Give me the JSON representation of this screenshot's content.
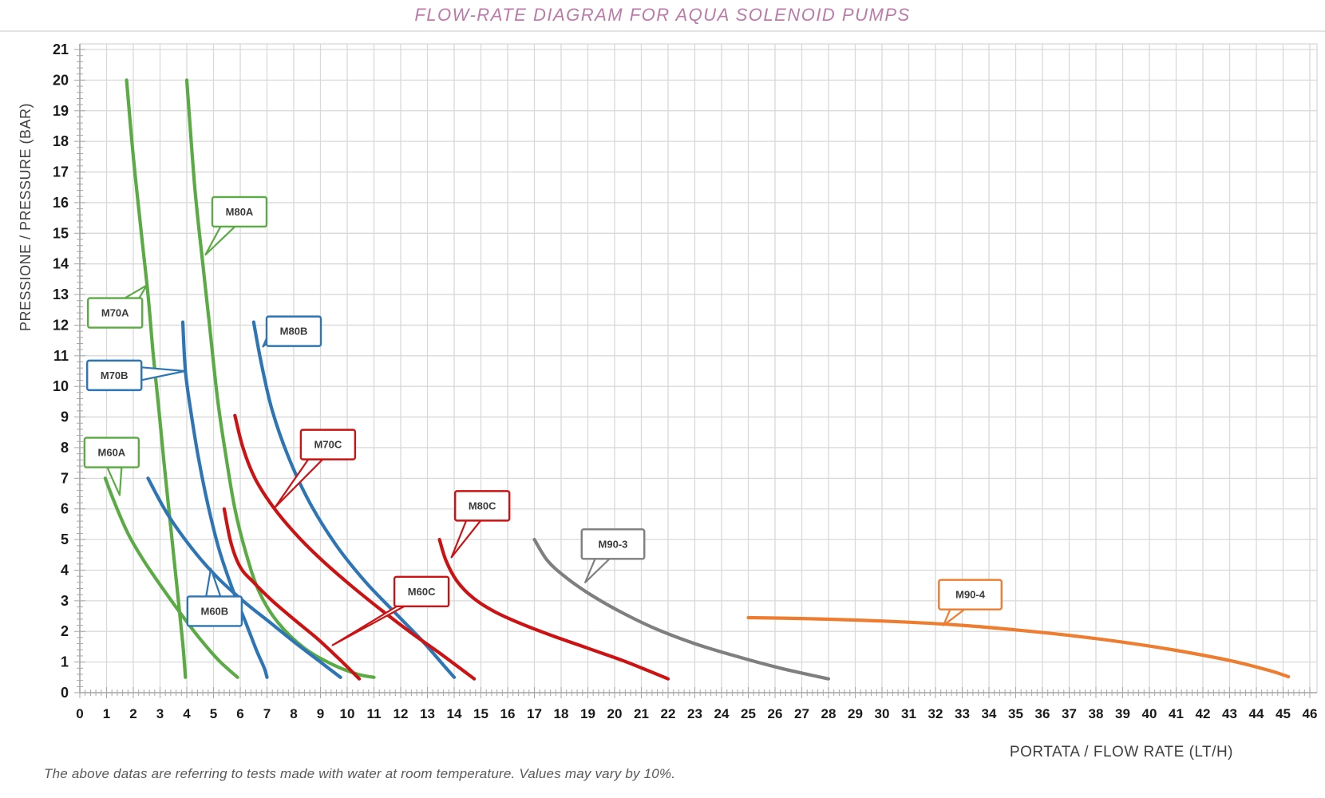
{
  "title": "FLOW-RATE DIAGRAM FOR AQUA SOLENOID PUMPS",
  "footnote": "The above datas are referring to tests made with water at room temperature. Values may vary by 10%.",
  "colors": {
    "title": "#bc7aa8",
    "grid": "#d9d9d9",
    "axis": "#a6a6a6",
    "tick_label": "#1a1a1a",
    "axis_label": "#404040",
    "footnote": "#595959",
    "green": "#5bab45",
    "blue": "#2e75b6",
    "red": "#cc1212",
    "gray": "#7f7f7f",
    "orange": "#ed7d31"
  },
  "chart_data": {
    "type": "line",
    "title": "FLOW-RATE DIAGRAM FOR AQUA SOLENOID PUMPS",
    "xlabel": "PORTATA / FLOW RATE (LT/H)",
    "ylabel": "PRESSIONE / PRESSURE (BAR)",
    "xlim": [
      0,
      46
    ],
    "ylim": [
      0,
      21
    ],
    "x_tick_step": 1,
    "y_tick_step": 1,
    "grid": true,
    "legend_position": "callout-labels-on-curves",
    "series": [
      {
        "name": "M60A",
        "color": "#5bab45",
        "points": [
          [
            0.95,
            7.0
          ],
          [
            1.3,
            6.2
          ],
          [
            1.8,
            5.2
          ],
          [
            2.4,
            4.3
          ],
          [
            3.1,
            3.4
          ],
          [
            3.8,
            2.55
          ],
          [
            4.5,
            1.75
          ],
          [
            5.2,
            1.05
          ],
          [
            5.9,
            0.5
          ]
        ],
        "label_box": [
          1.19,
          7.84
        ],
        "label_anchor": [
          1.49,
          6.45
        ]
      },
      {
        "name": "M70A",
        "color": "#5bab45",
        "points": [
          [
            1.75,
            20
          ],
          [
            2.0,
            17.5
          ],
          [
            2.3,
            15
          ],
          [
            2.55,
            13
          ],
          [
            2.75,
            11
          ],
          [
            2.95,
            9.3
          ],
          [
            3.15,
            7.5
          ],
          [
            3.4,
            5.4
          ],
          [
            3.65,
            3.3
          ],
          [
            3.85,
            1.6
          ],
          [
            3.95,
            0.5
          ]
        ],
        "label_box": [
          1.32,
          12.4
        ],
        "label_anchor": [
          2.5,
          13.3
        ]
      },
      {
        "name": "M80A",
        "color": "#5bab45",
        "points": [
          [
            4.0,
            20
          ],
          [
            4.3,
            16.5
          ],
          [
            4.6,
            14
          ],
          [
            4.85,
            12
          ],
          [
            5.15,
            9.6
          ],
          [
            5.45,
            7.8
          ],
          [
            5.8,
            6.0
          ],
          [
            6.2,
            4.6
          ],
          [
            6.7,
            3.3
          ],
          [
            7.4,
            2.3
          ],
          [
            8.4,
            1.45
          ],
          [
            9.5,
            0.9
          ],
          [
            10.4,
            0.6
          ],
          [
            11.0,
            0.5
          ]
        ],
        "label_box": [
          5.97,
          15.7
        ],
        "label_anchor": [
          4.7,
          14.3
        ]
      },
      {
        "name": "M60B",
        "color": "#2e75b6",
        "points": [
          [
            2.55,
            7.0
          ],
          [
            3.3,
            5.8
          ],
          [
            4.2,
            4.7
          ],
          [
            5.1,
            3.8
          ],
          [
            6.1,
            3.0
          ],
          [
            7.1,
            2.3
          ],
          [
            8.1,
            1.6
          ],
          [
            9.0,
            1.0
          ],
          [
            9.75,
            0.5
          ]
        ],
        "label_box": [
          5.04,
          2.66
        ],
        "label_anchor": [
          4.9,
          4.05
        ]
      },
      {
        "name": "M70B",
        "color": "#2e75b6",
        "points": [
          [
            3.85,
            12.1
          ],
          [
            3.95,
            10.5
          ],
          [
            4.15,
            9.2
          ],
          [
            4.45,
            7.6
          ],
          [
            4.8,
            6.1
          ],
          [
            5.2,
            4.7
          ],
          [
            5.7,
            3.4
          ],
          [
            6.2,
            2.3
          ],
          [
            6.6,
            1.4
          ],
          [
            6.9,
            0.8
          ],
          [
            7.0,
            0.5
          ]
        ],
        "label_box": [
          1.29,
          10.36
        ],
        "label_anchor": [
          3.94,
          10.5
        ]
      },
      {
        "name": "M80B",
        "color": "#2e75b6",
        "points": [
          [
            6.5,
            12.1
          ],
          [
            6.8,
            10.7
          ],
          [
            7.2,
            9.2
          ],
          [
            7.8,
            7.7
          ],
          [
            8.6,
            6.2
          ],
          [
            9.6,
            4.8
          ],
          [
            10.7,
            3.6
          ],
          [
            11.8,
            2.6
          ],
          [
            12.8,
            1.7
          ],
          [
            13.6,
            0.9
          ],
          [
            14.0,
            0.5
          ]
        ],
        "label_box": [
          8.0,
          11.8
        ],
        "label_anchor": [
          6.85,
          11.3
        ]
      },
      {
        "name": "M60C",
        "color": "#cc1212",
        "points": [
          [
            5.4,
            6.0
          ],
          [
            5.65,
            4.9
          ],
          [
            6.0,
            4.1
          ],
          [
            6.5,
            3.6
          ],
          [
            7.2,
            3.0
          ],
          [
            8.0,
            2.4
          ],
          [
            8.9,
            1.75
          ],
          [
            9.7,
            1.1
          ],
          [
            10.45,
            0.45
          ]
        ],
        "label_box": [
          12.78,
          3.3
        ],
        "label_anchor": [
          9.45,
          1.55
        ]
      },
      {
        "name": "M70C",
        "color": "#cc1212",
        "points": [
          [
            5.8,
            9.05
          ],
          [
            6.1,
            8.0
          ],
          [
            6.55,
            7.0
          ],
          [
            7.2,
            6.1
          ],
          [
            8.0,
            5.25
          ],
          [
            8.9,
            4.45
          ],
          [
            10.0,
            3.6
          ],
          [
            11.2,
            2.75
          ],
          [
            12.4,
            1.95
          ],
          [
            13.6,
            1.2
          ],
          [
            14.75,
            0.45
          ]
        ],
        "label_box": [
          9.28,
          8.1
        ],
        "label_anchor": [
          7.3,
          6.05
        ]
      },
      {
        "name": "M80C",
        "color": "#cc1212",
        "points": [
          [
            13.45,
            5.0
          ],
          [
            13.7,
            4.3
          ],
          [
            14.1,
            3.65
          ],
          [
            14.7,
            3.1
          ],
          [
            15.5,
            2.65
          ],
          [
            16.5,
            2.25
          ],
          [
            17.7,
            1.85
          ],
          [
            19.0,
            1.45
          ],
          [
            20.3,
            1.05
          ],
          [
            21.3,
            0.7
          ],
          [
            22.0,
            0.45
          ]
        ],
        "label_box": [
          15.05,
          6.1
        ],
        "label_anchor": [
          13.9,
          4.42
        ]
      },
      {
        "name": "M90-3",
        "color": "#7f7f7f",
        "points": [
          [
            17.0,
            5.0
          ],
          [
            17.5,
            4.3
          ],
          [
            18.2,
            3.75
          ],
          [
            19.1,
            3.2
          ],
          [
            20.2,
            2.65
          ],
          [
            21.5,
            2.1
          ],
          [
            23.0,
            1.6
          ],
          [
            24.5,
            1.2
          ],
          [
            26.2,
            0.8
          ],
          [
            28.0,
            0.45
          ]
        ],
        "label_box": [
          19.94,
          4.85
        ],
        "label_anchor": [
          18.9,
          3.6
        ]
      },
      {
        "name": "M90-4",
        "color": "#ed7d31",
        "points": [
          [
            25.0,
            2.45
          ],
          [
            27.0,
            2.42
          ],
          [
            29.0,
            2.37
          ],
          [
            31.0,
            2.3
          ],
          [
            33.0,
            2.2
          ],
          [
            35.0,
            2.05
          ],
          [
            37.0,
            1.87
          ],
          [
            39.0,
            1.65
          ],
          [
            41.0,
            1.38
          ],
          [
            43.0,
            1.05
          ],
          [
            44.5,
            0.72
          ],
          [
            45.2,
            0.52
          ]
        ],
        "label_box": [
          33.3,
          3.2
        ],
        "label_anchor": [
          32.3,
          2.2
        ]
      }
    ]
  }
}
